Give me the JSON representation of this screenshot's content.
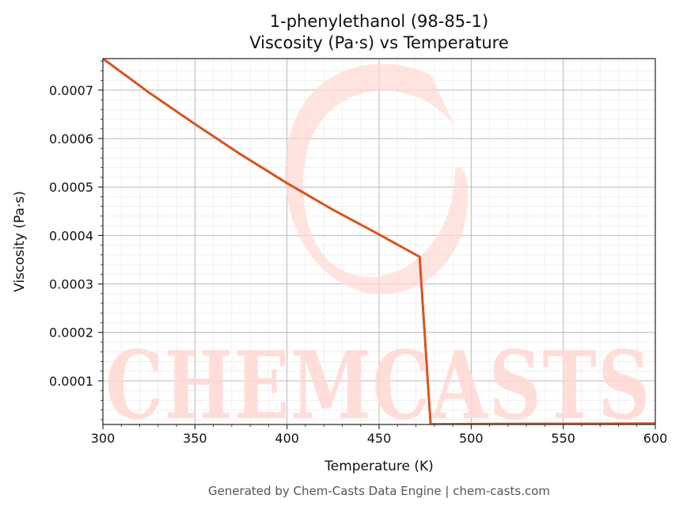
{
  "chart_data": {
    "type": "line",
    "title": "1-phenylethanol (98-85-1)",
    "subtitle": "Viscosity (Pa·s) vs Temperature",
    "xlabel": "Temperature (K)",
    "ylabel": "Viscosity (Pa·s)",
    "xlim": [
      300,
      600
    ],
    "ylim": [
      1e-05,
      0.000765
    ],
    "xticks": [
      300,
      350,
      400,
      450,
      500,
      550,
      600
    ],
    "xtick_labels": [
      "300",
      "350",
      "400",
      "450",
      "500",
      "550",
      "600"
    ],
    "yticks": [
      0.0001,
      0.0002,
      0.0003,
      0.0004,
      0.0005,
      0.0006,
      0.0007
    ],
    "ytick_labels": [
      "0.0001",
      "0.0002",
      "0.0003",
      "0.0004",
      "0.0005",
      "0.0006",
      "0.0007"
    ],
    "grid": true,
    "series": [
      {
        "color": "#d9541e",
        "x": [
          300,
          325,
          350,
          375,
          400,
          425,
          450,
          472,
          478,
          500,
          550,
          600
        ],
        "y": [
          0.000765,
          0.000695,
          0.00063,
          0.000567,
          0.000508,
          0.000453,
          0.000402,
          0.000356,
          1.05e-05,
          1.1e-05,
          1.15e-05,
          1.2e-05
        ]
      }
    ]
  },
  "watermark": {
    "text": "CHEMCASTS",
    "color": "#ffd9d3"
  },
  "footer": {
    "text": "Generated by Chem-Casts Data Engine | chem-casts.com"
  }
}
